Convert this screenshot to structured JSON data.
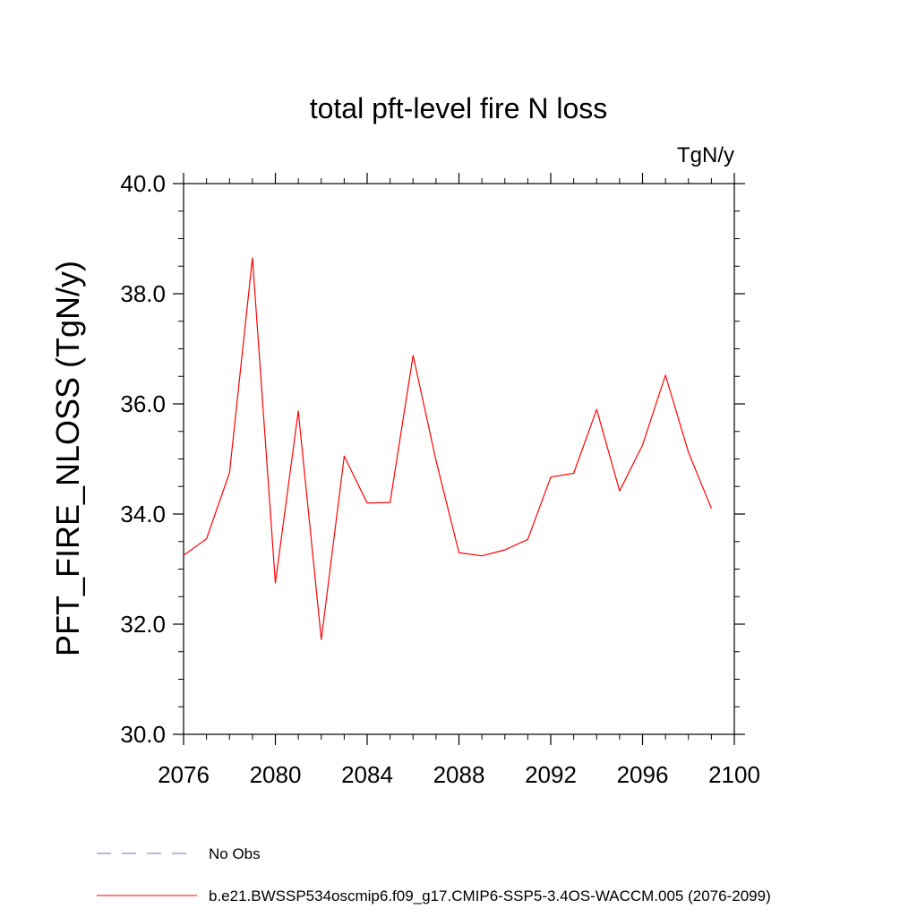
{
  "chart_data": {
    "type": "line",
    "title": "total pft-level fire N loss",
    "units": "TgN/y",
    "ylabel": "PFT_FIRE_NLOSS  (TgN/y)",
    "xlabel": "",
    "xlim": [
      2076,
      2100
    ],
    "ylim": [
      30,
      40
    ],
    "x_ticks": [
      2076,
      2080,
      2084,
      2088,
      2092,
      2096,
      2100
    ],
    "x_tick_labels": [
      "2076",
      "2080",
      "2084",
      "2088",
      "2092",
      "2096",
      "2100"
    ],
    "y_ticks": [
      30,
      32,
      34,
      36,
      38,
      40
    ],
    "y_tick_labels": [
      "30.0",
      "32.0",
      "34.0",
      "36.0",
      "38.0",
      "40.0"
    ],
    "grid": false,
    "legend_position": "bottom",
    "series": [
      {
        "name": "b.e21.BWSSP534oscmip6.f09_g17.CMIP6-SSP5-3.4OS-WACCM.005 (2076-2099)",
        "color": "#ff0000",
        "style": "solid",
        "x": [
          2076,
          2077,
          2078,
          2079,
          2080,
          2081,
          2082,
          2083,
          2084,
          2085,
          2086,
          2087,
          2088,
          2089,
          2090,
          2091,
          2092,
          2093,
          2094,
          2095,
          2096,
          2097,
          2098,
          2099
        ],
        "y": [
          33.25,
          33.55,
          34.75,
          38.65,
          32.75,
          35.87,
          31.72,
          35.05,
          34.2,
          34.21,
          36.88,
          34.97,
          33.3,
          33.24,
          33.35,
          33.54,
          34.67,
          34.74,
          35.9,
          34.42,
          35.25,
          36.52,
          35.12,
          34.1
        ]
      }
    ],
    "legend": [
      {
        "label": "No Obs",
        "color": "#7b6fb8",
        "style": "dashed"
      },
      {
        "label": "b.e21.BWSSP534oscmip6.f09_g17.CMIP6-SSP5-3.4OS-WACCM.005 (2076-2099)",
        "color": "#ff0000",
        "style": "solid"
      }
    ]
  }
}
